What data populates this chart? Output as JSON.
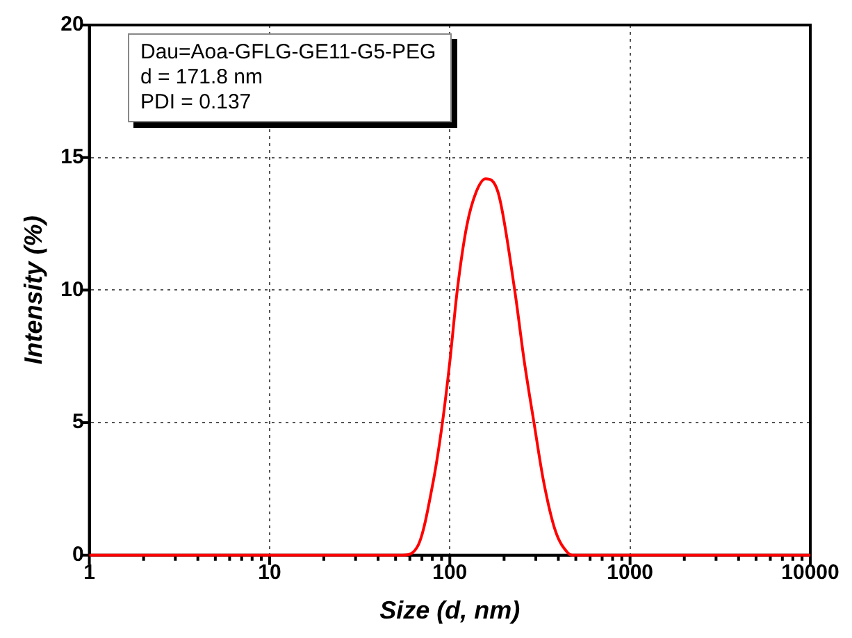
{
  "chart_data": {
    "type": "line",
    "xlabel": "Size (d, nm)",
    "ylabel": "Intensity (%)",
    "annotations": [
      "Dau=Aoa-GFLG-GE11-G5-PEG",
      "d = 171.8 nm",
      "PDI = 0.137"
    ],
    "log": "x",
    "xlim": [
      1,
      10000
    ],
    "ylim": [
      0,
      20
    ],
    "xticks": [
      1,
      {
        "value": 2,
        "label": null
      },
      {
        "value": 3,
        "label": null
      },
      {
        "value": 4,
        "label": null
      },
      {
        "value": 5,
        "label": null
      },
      {
        "value": 6,
        "label": null
      },
      {
        "value": 7,
        "label": null
      },
      {
        "value": 8,
        "label": null
      },
      {
        "value": 9,
        "label": null
      },
      10,
      {
        "value": 20,
        "label": null
      },
      {
        "value": 30,
        "label": null
      },
      {
        "value": 40,
        "label": null
      },
      {
        "value": 50,
        "label": null
      },
      {
        "value": 60,
        "label": null
      },
      {
        "value": 70,
        "label": null
      },
      {
        "value": 80,
        "label": null
      },
      {
        "value": 90,
        "label": null
      },
      100,
      {
        "value": 200,
        "label": null
      },
      {
        "value": 300,
        "label": null
      },
      {
        "value": 400,
        "label": null
      },
      {
        "value": 500,
        "label": null
      },
      {
        "value": 600,
        "label": null
      },
      {
        "value": 700,
        "label": null
      },
      {
        "value": 800,
        "label": null
      },
      {
        "value": 900,
        "label": null
      },
      1000,
      {
        "value": 2000,
        "label": null
      },
      {
        "value": 3000,
        "label": null
      },
      {
        "value": 4000,
        "label": null
      },
      {
        "value": 5000,
        "label": null
      },
      {
        "value": 6000,
        "label": null
      },
      {
        "value": 7000,
        "label": null
      },
      {
        "value": 8000,
        "label": null
      },
      {
        "value": 9000,
        "label": null
      },
      10000
    ],
    "yticks": [
      0,
      5,
      10,
      15,
      20
    ],
    "grid": true,
    "legend": false,
    "marker": "none",
    "line_style": "solid",
    "series": [
      {
        "color": "#ff0000",
        "x": [
          1,
          10,
          55,
          67,
          81,
          91,
          100,
          110,
          124,
          140,
          158,
          185,
          229,
          259,
          293,
          331,
          386,
          450,
          478,
          1000,
          10000
        ],
        "values": [
          0,
          0,
          0,
          0.4,
          2.8,
          5,
          7.3,
          10,
          12.4,
          13.7,
          14.2,
          13.7,
          10,
          7.3,
          5,
          2.8,
          0.9,
          0.1,
          0,
          0,
          0
        ]
      }
    ]
  }
}
